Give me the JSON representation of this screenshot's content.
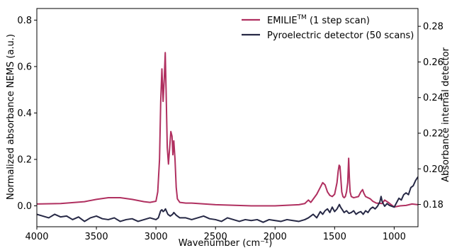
{
  "chart_data": {
    "type": "line",
    "xlabel": "Wavenumber (cm⁻¹)",
    "ylabel_left": "Normalized absorbance NEMS (a.u.)",
    "ylabel_right": "Absorbance internal detector",
    "xlim": [
      4000,
      800
    ],
    "ylim_left": [
      -0.09,
      0.85
    ],
    "ylim_right": [
      0.1675,
      0.29
    ],
    "x_ticks": [
      4000,
      3500,
      3000,
      2500,
      2000,
      1500,
      1000
    ],
    "y_ticks_left": [
      0.0,
      0.2,
      0.4,
      0.6,
      0.8
    ],
    "y_ticks_left_labels": [
      "0.0",
      "0.2",
      "0.4",
      "0.6",
      "0.8"
    ],
    "y_ticks_right": [
      0.18,
      0.2,
      0.22,
      0.24,
      0.26,
      0.28
    ],
    "y_ticks_right_labels": [
      "0.18",
      "0.20",
      "0.22",
      "0.24",
      "0.26",
      "0.28"
    ],
    "grid": false,
    "legend_position": "top-right",
    "series": [
      {
        "name": "EMILIE",
        "name_superscript": "TM",
        "name_suffix": " (1 step scan)",
        "axis": "left",
        "color": "#b03060",
        "x": [
          4000,
          3800,
          3600,
          3500,
          3400,
          3300,
          3200,
          3100,
          3050,
          3000,
          2985,
          2970,
          2960,
          2950,
          2940,
          2930,
          2922,
          2915,
          2905,
          2895,
          2885,
          2875,
          2865,
          2858,
          2850,
          2840,
          2830,
          2820,
          2800,
          2750,
          2700,
          2500,
          2200,
          2000,
          1800,
          1750,
          1730,
          1720,
          1700,
          1650,
          1620,
          1600,
          1580,
          1560,
          1540,
          1520,
          1500,
          1480,
          1470,
          1462,
          1455,
          1448,
          1440,
          1430,
          1420,
          1410,
          1400,
          1390,
          1382,
          1376,
          1370,
          1360,
          1340,
          1300,
          1280,
          1265,
          1255,
          1240,
          1200,
          1180,
          1150,
          1100,
          1080,
          1050,
          1000,
          950,
          900,
          850,
          800
        ],
        "y": [
          0.008,
          0.01,
          0.018,
          0.028,
          0.035,
          0.035,
          0.028,
          0.018,
          0.015,
          0.02,
          0.06,
          0.2,
          0.45,
          0.59,
          0.45,
          0.55,
          0.66,
          0.5,
          0.25,
          0.18,
          0.25,
          0.32,
          0.3,
          0.22,
          0.28,
          0.2,
          0.08,
          0.03,
          0.015,
          0.012,
          0.012,
          0.005,
          0.0,
          0.0,
          0.005,
          0.01,
          0.02,
          0.025,
          0.015,
          0.05,
          0.08,
          0.1,
          0.09,
          0.06,
          0.045,
          0.04,
          0.05,
          0.1,
          0.15,
          0.175,
          0.17,
          0.12,
          0.06,
          0.04,
          0.035,
          0.04,
          0.06,
          0.1,
          0.205,
          0.12,
          0.06,
          0.04,
          0.035,
          0.04,
          0.06,
          0.07,
          0.055,
          0.04,
          0.03,
          0.02,
          0.012,
          0.01,
          0.025,
          0.015,
          -0.005,
          0.0,
          0.002,
          0.008,
          0.005
        ]
      },
      {
        "name": "Pyroelectric detector (50 scans)",
        "axis": "right",
        "color": "#262845",
        "x": [
          4000,
          3950,
          3900,
          3850,
          3800,
          3750,
          3700,
          3650,
          3600,
          3550,
          3500,
          3450,
          3400,
          3350,
          3300,
          3250,
          3200,
          3150,
          3100,
          3050,
          3000,
          2980,
          2960,
          2950,
          2940,
          2930,
          2920,
          2910,
          2900,
          2880,
          2860,
          2850,
          2830,
          2800,
          2750,
          2700,
          2650,
          2600,
          2550,
          2500,
          2450,
          2400,
          2350,
          2300,
          2250,
          2200,
          2150,
          2100,
          2050,
          2000,
          1950,
          1900,
          1850,
          1800,
          1750,
          1720,
          1700,
          1680,
          1650,
          1620,
          1600,
          1580,
          1560,
          1540,
          1520,
          1500,
          1480,
          1460,
          1450,
          1440,
          1420,
          1400,
          1380,
          1360,
          1340,
          1320,
          1300,
          1280,
          1260,
          1240,
          1220,
          1200,
          1180,
          1160,
          1140,
          1120,
          1110,
          1100,
          1080,
          1060,
          1040,
          1020,
          1000,
          980,
          960,
          940,
          920,
          900,
          880,
          860,
          840,
          820,
          800
        ],
        "y": [
          0.1745,
          0.1735,
          0.1725,
          0.1745,
          0.173,
          0.1735,
          0.1715,
          0.173,
          0.1705,
          0.1725,
          0.1735,
          0.172,
          0.1715,
          0.1725,
          0.1705,
          0.1715,
          0.172,
          0.1705,
          0.1715,
          0.1725,
          0.1715,
          0.1725,
          0.1765,
          0.177,
          0.176,
          0.1765,
          0.1775,
          0.176,
          0.1745,
          0.1735,
          0.1745,
          0.1755,
          0.174,
          0.1725,
          0.1725,
          0.1715,
          0.1725,
          0.1735,
          0.172,
          0.1715,
          0.1705,
          0.1725,
          0.1715,
          0.1705,
          0.1715,
          0.171,
          0.1715,
          0.17,
          0.1715,
          0.171,
          0.1705,
          0.1715,
          0.171,
          0.1705,
          0.1715,
          0.1725,
          0.1735,
          0.1745,
          0.1725,
          0.176,
          0.1745,
          0.1765,
          0.1775,
          0.1755,
          0.1785,
          0.176,
          0.1775,
          0.18,
          0.1785,
          0.1775,
          0.1755,
          0.1765,
          0.175,
          0.1755,
          0.1765,
          0.1745,
          0.1755,
          0.176,
          0.1745,
          0.1765,
          0.1755,
          0.1775,
          0.1785,
          0.1775,
          0.179,
          0.1815,
          0.1845,
          0.1815,
          0.179,
          0.1805,
          0.1795,
          0.179,
          0.1785,
          0.181,
          0.1835,
          0.1825,
          0.1855,
          0.1865,
          0.1855,
          0.1895,
          0.1905,
          0.1935,
          0.1955
        ]
      }
    ]
  }
}
